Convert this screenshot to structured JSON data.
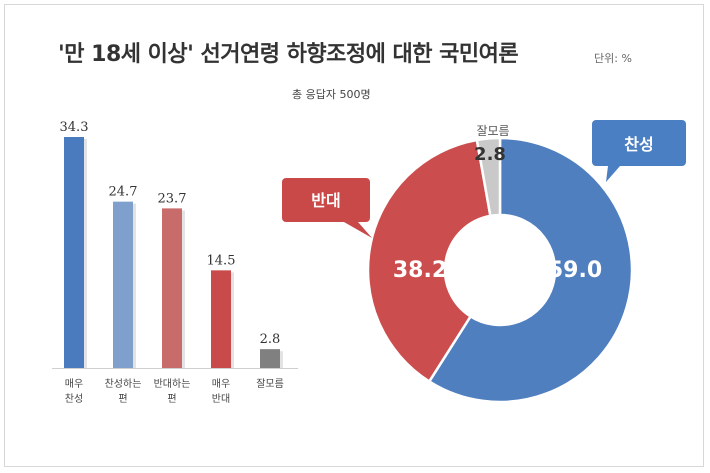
{
  "title": "'만 18세 이상' 선거연령 하향조정에 대한 국민여론",
  "unit_label": "단위: %",
  "subtitle": "총 응답자 500명",
  "colors": {
    "strong_agree": "#4b7bbf",
    "agree": "#7f9fcd",
    "disagree": "#c86b6b",
    "strong_disagree": "#c94a4a",
    "dont_know": "#808080",
    "pie_agree": "#4f7fbf",
    "pie_disagree": "#cc4d4d",
    "pie_dont_know": "#c9c9c9"
  },
  "chart_data": [
    {
      "type": "bar",
      "categories": [
        "매우\n찬성",
        "찬성하는\n편",
        "반대하는\n편",
        "매우\n반대",
        "잘모름"
      ],
      "values": [
        34.3,
        24.7,
        23.7,
        14.5,
        2.8
      ],
      "value_labels": [
        "34.3",
        "24.7",
        "23.7",
        "14.5",
        "2.8"
      ],
      "ylim": [
        0,
        34.3
      ]
    },
    {
      "type": "pie",
      "labels": [
        "찬성",
        "반대",
        "잘모름"
      ],
      "values": [
        59.0,
        38.2,
        2.8
      ],
      "value_labels": [
        "59.0",
        "38.2",
        "2.8"
      ],
      "style": "donut"
    }
  ]
}
